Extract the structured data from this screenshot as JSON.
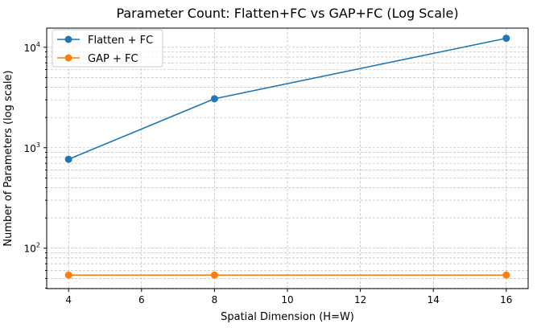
{
  "chart_data": {
    "type": "line",
    "title": "Parameter Count: Flatten+FC vs GAP+FC (Log Scale)",
    "xlabel": "Spatial Dimension (H=W)",
    "ylabel": "Number of Parameters (log scale)",
    "x": [
      4,
      8,
      16
    ],
    "xlim": [
      3.4,
      16.6
    ],
    "ylim": [
      39.6,
      15500
    ],
    "yscale": "log",
    "xticks": [
      4,
      6,
      8,
      10,
      12,
      14,
      16
    ],
    "yticks": [
      {
        "value": 100,
        "base": "10",
        "exp": "2"
      },
      {
        "value": 1000,
        "base": "10",
        "exp": "3"
      },
      {
        "value": 10000,
        "base": "10",
        "exp": "4"
      }
    ],
    "grid": true,
    "legend_position": "top-left",
    "series": [
      {
        "name": "Flatten + FC",
        "color": "#1f77b4",
        "values": [
          768,
          3072,
          12288
        ]
      },
      {
        "name": "GAP + FC",
        "color": "#ff7f0e",
        "values": [
          54,
          54,
          54
        ]
      }
    ]
  }
}
